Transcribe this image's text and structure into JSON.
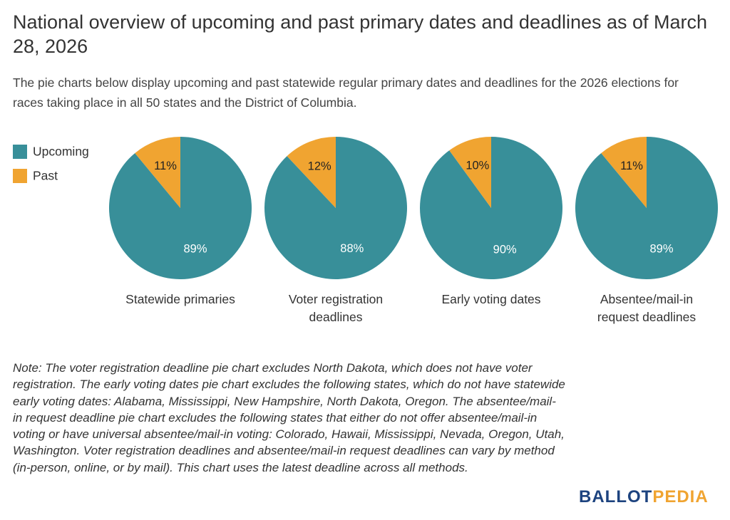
{
  "title": "National overview of upcoming and past primary dates and deadlines as of March 28, 2026",
  "subtitle": "The pie charts below display upcoming and past statewide regular primary dates and deadlines for the 2026 elections for races taking place in all 50 states and the District of Columbia.",
  "note": "Note: The voter registration deadline pie chart excludes North Dakota, which does not have voter registration. The early voting dates pie chart excludes the following states, which do not have statewide early voting dates: Alabama, Mississippi, New Hampshire, North Dakota, Oregon. The absentee/mail-in request deadline pie chart excludes the following states that either do not offer absentee/mail-in voting or have universal absentee/mail-in voting: Colorado, Hawaii, Mississippi, Nevada, Oregon, Utah, Washington. Voter registration deadlines and absentee/mail-in request deadlines can vary by method (in-person, online, or by mail). This chart uses the latest deadline across all methods.",
  "logo": [
    "BALLOT",
    "PEDIA"
  ],
  "chart_data": [
    {
      "type": "pie",
      "title": "Statewide primaries",
      "categories": [
        "Upcoming",
        "Past"
      ],
      "values": [
        89,
        11
      ],
      "value_labels": [
        "89%",
        "11%"
      ],
      "colors": [
        "#388f99",
        "#f0a431"
      ]
    },
    {
      "type": "pie",
      "title": "Voter registration deadlines",
      "categories": [
        "Upcoming",
        "Past"
      ],
      "values": [
        88,
        12
      ],
      "value_labels": [
        "88%",
        "12%"
      ],
      "colors": [
        "#388f99",
        "#f0a431"
      ]
    },
    {
      "type": "pie",
      "title": "Early voting dates",
      "categories": [
        "Upcoming",
        "Past"
      ],
      "values": [
        90,
        10
      ],
      "value_labels": [
        "90%",
        "10%"
      ],
      "colors": [
        "#388f99",
        "#f0a431"
      ]
    },
    {
      "type": "pie",
      "title": "Absentee/mail-in request deadlines",
      "categories": [
        "Upcoming",
        "Past"
      ],
      "values": [
        89,
        11
      ],
      "value_labels": [
        "89%",
        "11%"
      ],
      "colors": [
        "#388f99",
        "#f0a431"
      ]
    }
  ]
}
